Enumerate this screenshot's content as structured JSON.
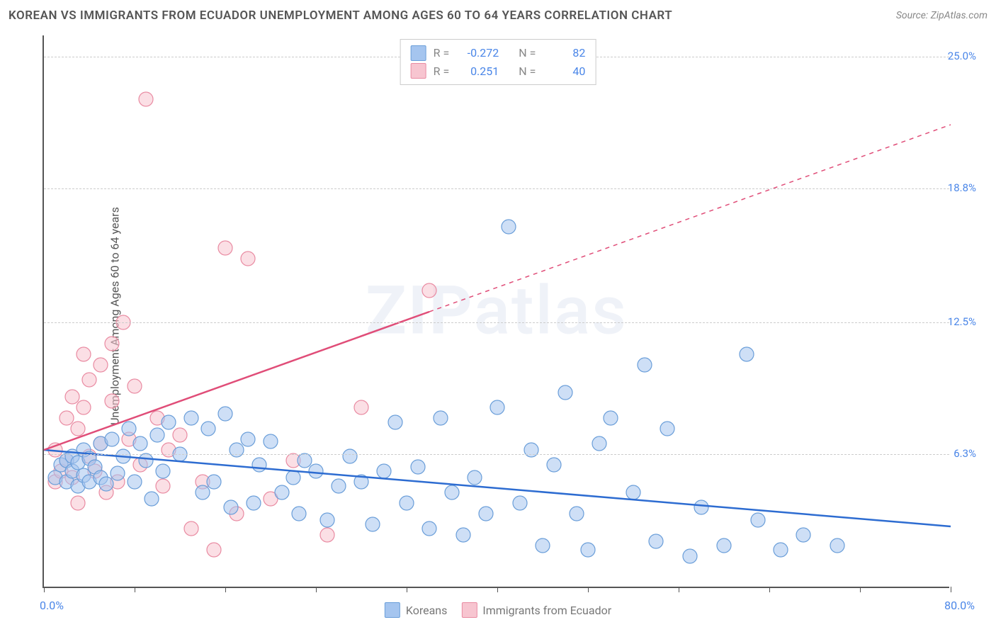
{
  "title": "KOREAN VS IMMIGRANTS FROM ECUADOR UNEMPLOYMENT AMONG AGES 60 TO 64 YEARS CORRELATION CHART",
  "source": "Source: ZipAtlas.com",
  "watermark_bold": "ZIP",
  "watermark_rest": "atlas",
  "y_axis_label": "Unemployment Among Ages 60 to 64 years",
  "x_origin": "0.0%",
  "x_max": "80.0%",
  "x_range": [
    0,
    80
  ],
  "y_range": [
    0,
    26
  ],
  "y_ticks": [
    {
      "value": 6.3,
      "label": "6.3%"
    },
    {
      "value": 12.5,
      "label": "12.5%"
    },
    {
      "value": 18.8,
      "label": "18.8%"
    },
    {
      "value": 25.0,
      "label": "25.0%"
    }
  ],
  "x_tick_positions": [
    0,
    8,
    16,
    24,
    32,
    40,
    48,
    56,
    64,
    72,
    80
  ],
  "series": {
    "blue": {
      "name": "Koreans",
      "marker_color": "#a5c5ef",
      "marker_border": "#6a9ed9",
      "line_color": "#2d6cd1",
      "r_value": "-0.272",
      "n_value": "82",
      "trend_start": {
        "x": 0,
        "y": 6.5
      },
      "trend_end": {
        "x": 80,
        "y": 2.9
      },
      "points": [
        [
          1,
          5.2
        ],
        [
          1.5,
          5.8
        ],
        [
          2,
          6.0
        ],
        [
          2,
          5.0
        ],
        [
          2.5,
          5.5
        ],
        [
          2.5,
          6.2
        ],
        [
          3,
          4.8
        ],
        [
          3,
          5.9
        ],
        [
          3.5,
          5.3
        ],
        [
          3.5,
          6.5
        ],
        [
          4,
          5.0
        ],
        [
          4,
          6.1
        ],
        [
          4.5,
          5.7
        ],
        [
          5,
          5.2
        ],
        [
          5,
          6.8
        ],
        [
          5.5,
          4.9
        ],
        [
          6,
          7.0
        ],
        [
          6.5,
          5.4
        ],
        [
          7,
          6.2
        ],
        [
          7.5,
          7.5
        ],
        [
          8,
          5.0
        ],
        [
          8.5,
          6.8
        ],
        [
          9,
          6.0
        ],
        [
          9.5,
          4.2
        ],
        [
          10,
          7.2
        ],
        [
          10.5,
          5.5
        ],
        [
          11,
          7.8
        ],
        [
          12,
          6.3
        ],
        [
          13,
          8.0
        ],
        [
          14,
          4.5
        ],
        [
          14.5,
          7.5
        ],
        [
          15,
          5.0
        ],
        [
          16,
          8.2
        ],
        [
          16.5,
          3.8
        ],
        [
          17,
          6.5
        ],
        [
          18,
          7.0
        ],
        [
          18.5,
          4.0
        ],
        [
          19,
          5.8
        ],
        [
          20,
          6.9
        ],
        [
          21,
          4.5
        ],
        [
          22,
          5.2
        ],
        [
          22.5,
          3.5
        ],
        [
          23,
          6.0
        ],
        [
          24,
          5.5
        ],
        [
          25,
          3.2
        ],
        [
          26,
          4.8
        ],
        [
          27,
          6.2
        ],
        [
          28,
          5.0
        ],
        [
          29,
          3.0
        ],
        [
          30,
          5.5
        ],
        [
          31,
          7.8
        ],
        [
          32,
          4.0
        ],
        [
          33,
          5.7
        ],
        [
          34,
          2.8
        ],
        [
          35,
          8.0
        ],
        [
          36,
          4.5
        ],
        [
          37,
          2.5
        ],
        [
          38,
          5.2
        ],
        [
          39,
          3.5
        ],
        [
          40,
          8.5
        ],
        [
          41,
          17.0
        ],
        [
          42,
          4.0
        ],
        [
          43,
          6.5
        ],
        [
          44,
          2.0
        ],
        [
          45,
          5.8
        ],
        [
          46,
          9.2
        ],
        [
          47,
          3.5
        ],
        [
          48,
          1.8
        ],
        [
          49,
          6.8
        ],
        [
          50,
          8.0
        ],
        [
          52,
          4.5
        ],
        [
          53,
          10.5
        ],
        [
          54,
          2.2
        ],
        [
          55,
          7.5
        ],
        [
          57,
          1.5
        ],
        [
          58,
          3.8
        ],
        [
          60,
          2.0
        ],
        [
          62,
          11.0
        ],
        [
          63,
          3.2
        ],
        [
          65,
          1.8
        ],
        [
          67,
          2.5
        ],
        [
          70,
          2.0
        ]
      ]
    },
    "pink": {
      "name": "Immigrants from Ecuador",
      "marker_color": "#f7c5d0",
      "marker_border": "#e98ba2",
      "line_color": "#e04d78",
      "r_value": "0.251",
      "n_value": "40",
      "trend_solid_start": {
        "x": 0,
        "y": 6.5
      },
      "trend_solid_end": {
        "x": 34,
        "y": 13.0
      },
      "trend_dash_end": {
        "x": 80,
        "y": 21.8
      },
      "points": [
        [
          1,
          5.0
        ],
        [
          1,
          6.5
        ],
        [
          1.5,
          5.5
        ],
        [
          2,
          8.0
        ],
        [
          2,
          6.0
        ],
        [
          2.5,
          9.0
        ],
        [
          2.5,
          5.2
        ],
        [
          3,
          7.5
        ],
        [
          3,
          4.0
        ],
        [
          3.5,
          8.5
        ],
        [
          3.5,
          11.0
        ],
        [
          4,
          6.2
        ],
        [
          4,
          9.8
        ],
        [
          4.5,
          5.5
        ],
        [
          5,
          10.5
        ],
        [
          5,
          6.8
        ],
        [
          5.5,
          4.5
        ],
        [
          6,
          8.8
        ],
        [
          6,
          11.5
        ],
        [
          6.5,
          5.0
        ],
        [
          7,
          12.5
        ],
        [
          7.5,
          7.0
        ],
        [
          8,
          9.5
        ],
        [
          8.5,
          5.8
        ],
        [
          9,
          23.0
        ],
        [
          10,
          8.0
        ],
        [
          10.5,
          4.8
        ],
        [
          11,
          6.5
        ],
        [
          12,
          7.2
        ],
        [
          13,
          2.8
        ],
        [
          14,
          5.0
        ],
        [
          15,
          1.8
        ],
        [
          16,
          16.0
        ],
        [
          17,
          3.5
        ],
        [
          18,
          15.5
        ],
        [
          20,
          4.2
        ],
        [
          22,
          6.0
        ],
        [
          25,
          2.5
        ],
        [
          28,
          8.5
        ],
        [
          34,
          14.0
        ]
      ]
    }
  },
  "legend_labels": {
    "r": "R =",
    "n": "N ="
  },
  "colors": {
    "grid": "#d8d8d8",
    "axis": "#555555",
    "text": "#555555",
    "tick_label": "#4a86e8",
    "background": "#ffffff"
  },
  "marker_radius": 10,
  "marker_opacity": 0.55,
  "line_width": 2.5
}
